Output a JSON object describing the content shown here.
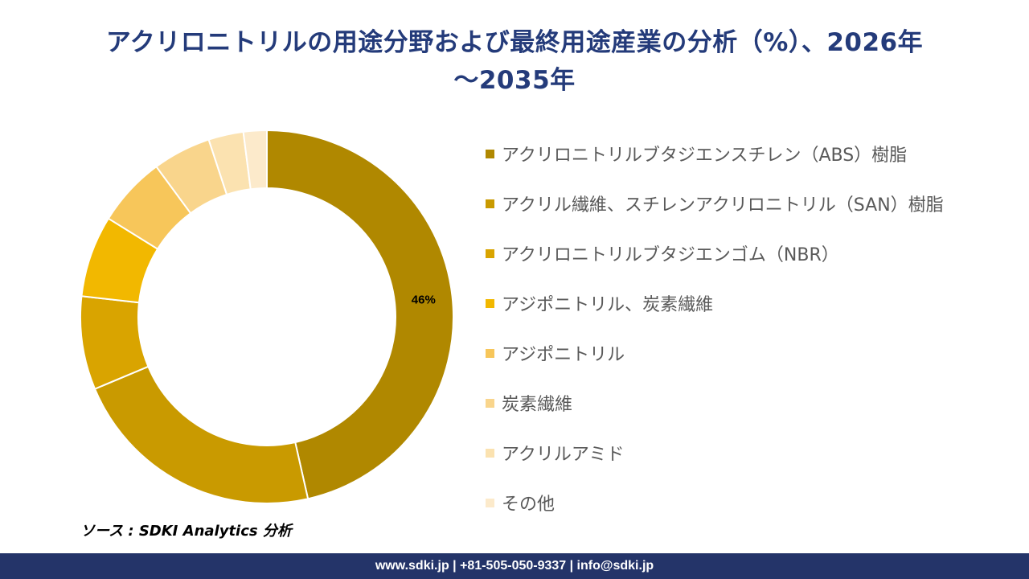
{
  "header": {
    "title_line1": "アクリロニトリルの用途分野および最終用途産業の分析（%）、2026年",
    "title_line2": "～2035年"
  },
  "chart_data": {
    "type": "pie",
    "donut": true,
    "categories": [
      "アクリロニトリルブタジエンスチレン（ABS）樹脂",
      "アクリル繊維、スチレンアクリロニトリル（SAN）樹脂",
      "アクリロニトリルブタジエンゴム（NBR）",
      "アジポニトリル、炭素繊維",
      "アジポニトリル",
      "炭素繊維",
      "アクリルアミド",
      "その他"
    ],
    "values": [
      46,
      22,
      8,
      7,
      6,
      5,
      3,
      2
    ],
    "data_labels": [
      "46%",
      "",
      "",
      "",
      "",
      "",
      "",
      ""
    ],
    "colors": [
      "#b08800",
      "#c99a00",
      "#d9a400",
      "#f2b800",
      "#f7c65a",
      "#f9d58c",
      "#fbe2b0",
      "#fceacb"
    ],
    "legend_position": "right"
  },
  "source": {
    "text": "ソース : SDKI Analytics 分析"
  },
  "footer": {
    "text": "www.sdki.jp | +81-505-050-9337 | info@sdki.jp"
  }
}
